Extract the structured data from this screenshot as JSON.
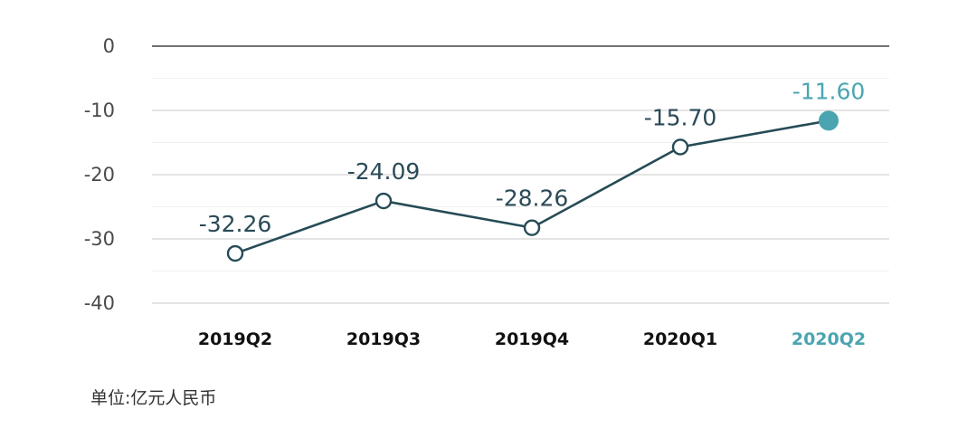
{
  "chart_data": {
    "type": "line",
    "categories": [
      "2019Q2",
      "2019Q3",
      "2019Q4",
      "2020Q1",
      "2020Q2"
    ],
    "values": [
      -32.26,
      -24.09,
      -28.26,
      -15.7,
      -11.6
    ],
    "data_labels": [
      "-32.26",
      "-24.09",
      "-28.26",
      "-15.70",
      "-11.60"
    ],
    "y_ticks": [
      0,
      -10,
      -20,
      -30,
      -40
    ],
    "y_tick_labels": [
      "0",
      "-10",
      "-20",
      "-30",
      "-40"
    ],
    "ylim": [
      -40,
      0
    ],
    "grid": true,
    "highlight_index": 4,
    "title": "",
    "xlabel": "",
    "ylabel": "",
    "colors": {
      "line": "#264b56",
      "highlight": "#4ba5b1",
      "grid": "#c8c8c8",
      "minor_grid": "#f1f1f1",
      "zero_line": "#1c1c1c"
    }
  },
  "footer": {
    "unit_note": "单位:亿元人民币"
  }
}
